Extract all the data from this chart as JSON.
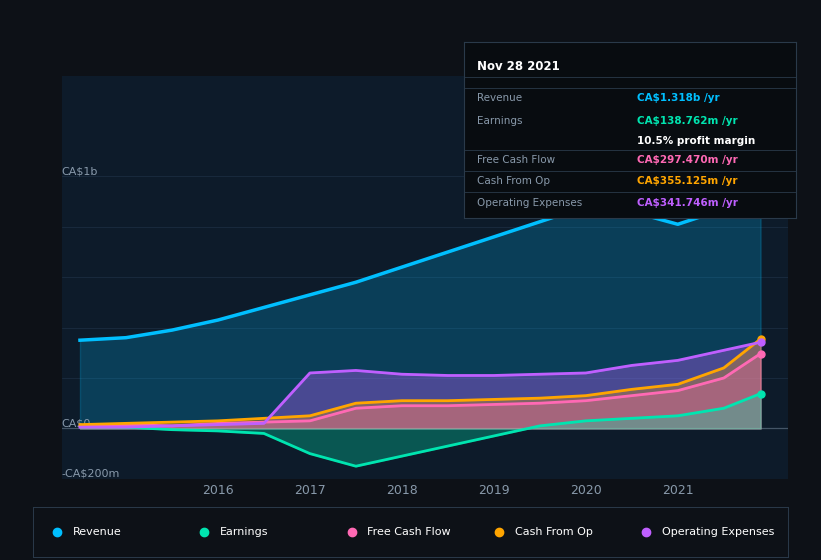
{
  "bg_color": "#0d1117",
  "chart_bg": "#0d1b2a",
  "ylabel_top": "CA$1b",
  "ylabel_bottom": "-CA$200m",
  "ylabel_zero": "CA$0",
  "x_labels": [
    "2016",
    "2017",
    "2018",
    "2019",
    "2020",
    "2021"
  ],
  "legend": [
    "Revenue",
    "Earnings",
    "Free Cash Flow",
    "Cash From Op",
    "Operating Expenses"
  ],
  "legend_colors": [
    "#00bfff",
    "#00e5b0",
    "#ff69b4",
    "#ffa500",
    "#bf5fff"
  ],
  "tooltip_date": "Nov 28 2021",
  "revenue": {
    "x": [
      2014.5,
      2015.0,
      2015.5,
      2016.0,
      2016.5,
      2017.0,
      2017.5,
      2018.0,
      2018.5,
      2019.0,
      2019.5,
      2020.0,
      2020.3,
      2020.5,
      2021.0,
      2021.5,
      2021.9
    ],
    "y": [
      350,
      360,
      390,
      430,
      480,
      530,
      580,
      640,
      700,
      760,
      820,
      880,
      870,
      860,
      810,
      870,
      1318
    ],
    "color": "#00bfff",
    "lw": 2.5
  },
  "earnings": {
    "x": [
      2014.5,
      2015.0,
      2015.5,
      2016.0,
      2016.5,
      2017.0,
      2017.5,
      2018.0,
      2018.5,
      2019.0,
      2019.5,
      2020.0,
      2020.5,
      2021.0,
      2021.5,
      2021.9
    ],
    "y": [
      10,
      5,
      -5,
      -10,
      -20,
      -100,
      -150,
      -110,
      -70,
      -30,
      10,
      30,
      40,
      50,
      80,
      138
    ],
    "color": "#00e5b0",
    "lw": 2.0
  },
  "free_cash_flow": {
    "x": [
      2014.5,
      2015.0,
      2015.5,
      2016.0,
      2016.5,
      2017.0,
      2017.5,
      2018.0,
      2018.5,
      2019.0,
      2019.5,
      2020.0,
      2020.5,
      2021.0,
      2021.5,
      2021.9
    ],
    "y": [
      10,
      15,
      10,
      20,
      25,
      30,
      80,
      90,
      90,
      95,
      100,
      110,
      130,
      150,
      200,
      297
    ],
    "color": "#ff69b4",
    "lw": 2.0
  },
  "cash_from_op": {
    "x": [
      2014.5,
      2015.0,
      2015.5,
      2016.0,
      2016.5,
      2017.0,
      2017.5,
      2018.0,
      2018.5,
      2019.0,
      2019.5,
      2020.0,
      2020.5,
      2021.0,
      2021.5,
      2021.9
    ],
    "y": [
      15,
      20,
      25,
      30,
      40,
      50,
      100,
      110,
      110,
      115,
      120,
      130,
      155,
      175,
      240,
      355
    ],
    "color": "#ffa500",
    "lw": 2.0
  },
  "operating_expenses": {
    "x": [
      2014.5,
      2015.0,
      2015.5,
      2016.0,
      2016.5,
      2017.0,
      2017.5,
      2018.0,
      2018.5,
      2019.0,
      2019.5,
      2020.0,
      2020.5,
      2021.0,
      2021.5,
      2021.9
    ],
    "y": [
      5,
      5,
      10,
      15,
      20,
      220,
      230,
      215,
      210,
      210,
      215,
      220,
      250,
      270,
      310,
      342
    ],
    "color": "#bf5fff",
    "lw": 2.0
  },
  "ylim": [
    -200,
    1400
  ],
  "xlim": [
    2014.3,
    2022.2
  ],
  "hgrid_lines": [
    1000,
    800,
    600,
    400,
    200,
    0,
    -200
  ],
  "hgrid_zero_color": "#445566",
  "hgrid_color": "#1e3044"
}
